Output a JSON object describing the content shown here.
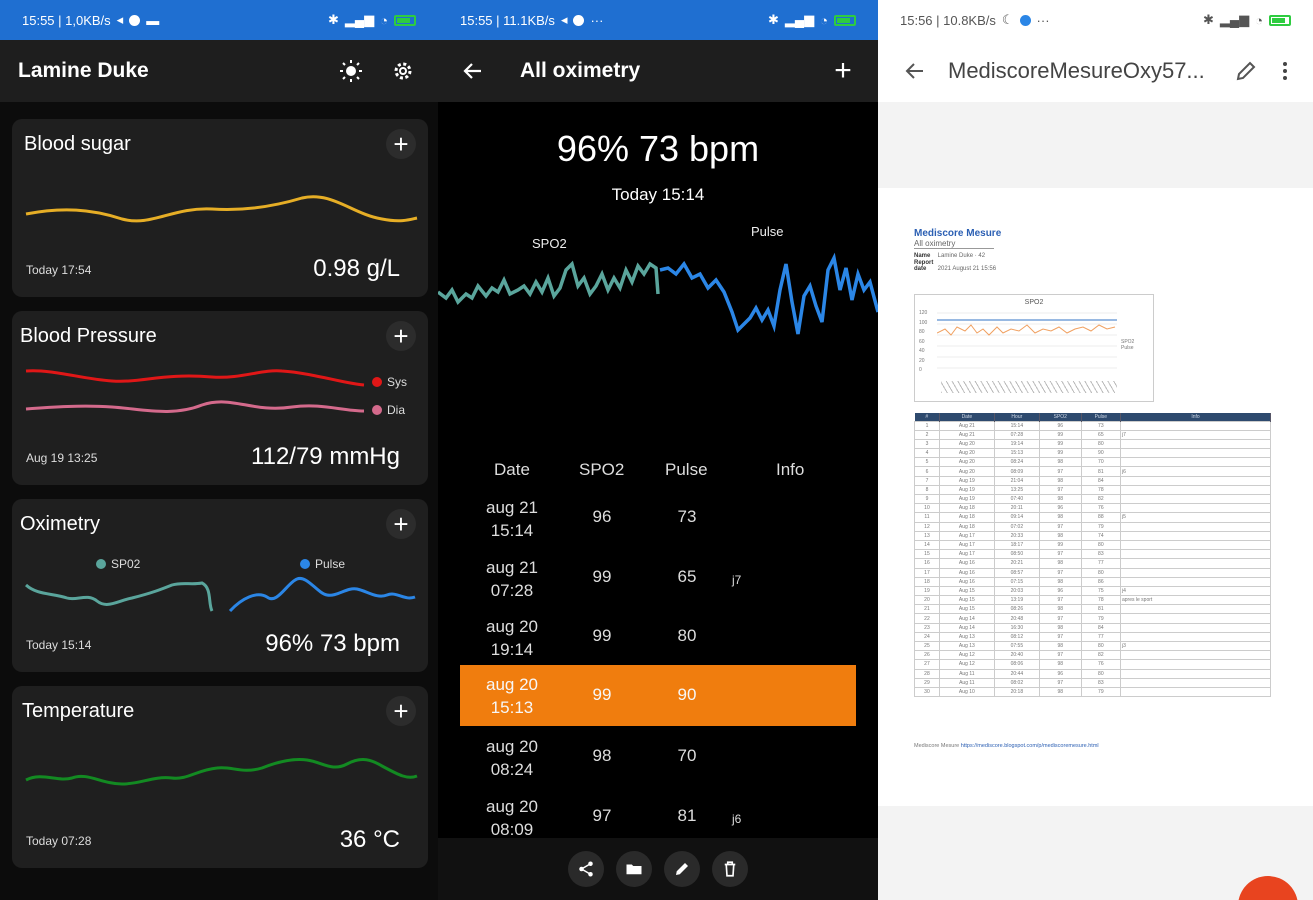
{
  "colors": {
    "accent_blue": "#1f6fd1",
    "selected_row": "#f07d0e",
    "blood_sugar": "#e6ae26",
    "systolic": "#e01717",
    "diastolic": "#d46a8c",
    "spo2": "#5aa59c",
    "pulse": "#2b86e6",
    "temperature": "#138a22",
    "fab": "#e8441f"
  },
  "panel1": {
    "status": {
      "time_info": "15:55 | 1,0KB/s"
    },
    "app_title": "Lamine Duke",
    "icons": {
      "brightness": "sun-icon",
      "settings": "gear-icon"
    },
    "cards": {
      "blood_sugar": {
        "title": "Blood sugar",
        "date": "Today 17:54",
        "value": "0.98 g/L"
      },
      "blood_pressure": {
        "title": "Blood Pressure",
        "date": "Aug 19 13:25",
        "value": "112/79 mmHg",
        "legend_sys": "Sys",
        "legend_dia": "Dia"
      },
      "oximetry": {
        "title": "Oximetry",
        "date": "Today 15:14",
        "value": "96% 73 bpm",
        "legend_spo2": "SP02",
        "legend_pulse": "Pulse"
      },
      "temperature": {
        "title": "Temperature",
        "date": "Today 07:28",
        "value": "36 °C"
      }
    }
  },
  "panel2": {
    "status": {
      "time_info": "15:55 | 11.1KB/s"
    },
    "title": "All oximetry",
    "summary": "96% 73 bpm",
    "summary_time": "Today 15:14",
    "chart_label_spo2": "SPO2",
    "chart_label_pulse": "Pulse",
    "table": {
      "headers": {
        "date": "Date",
        "spo2": "SPO2",
        "pulse": "Pulse",
        "info": "Info"
      },
      "rows": [
        {
          "date": "aug 21",
          "time": "15:14",
          "spo2": "96",
          "pulse": "73",
          "info": ""
        },
        {
          "date": "aug 21",
          "time": "07:28",
          "spo2": "99",
          "pulse": "65",
          "info": "j7"
        },
        {
          "date": "aug 20",
          "time": "19:14",
          "spo2": "99",
          "pulse": "80",
          "info": ""
        },
        {
          "date": "aug 20",
          "time": "15:13",
          "spo2": "99",
          "pulse": "90",
          "info": ""
        },
        {
          "date": "aug 20",
          "time": "08:24",
          "spo2": "98",
          "pulse": "70",
          "info": ""
        },
        {
          "date": "aug 20",
          "time": "08:09",
          "spo2": "97",
          "pulse": "81",
          "info": "j6"
        }
      ]
    },
    "toolbar_icons": [
      "share-icon",
      "folder-icon",
      "edit-icon",
      "delete-icon"
    ]
  },
  "panel3": {
    "status": {
      "time_info": "15:56 | 10.8KB/s"
    },
    "file_title": "MediscoreMesureOxy57...",
    "doc": {
      "title": "Mediscore Mesure",
      "subtitle": "All oximetry",
      "name_label": "Name",
      "name_value": "Lamine Duke · 42",
      "date_label": "Report date",
      "date_value": "2021 August 21 15:56",
      "chart_title": "SPO2",
      "chart_yticks": [
        "120",
        "100",
        "80",
        "60",
        "40",
        "20",
        "0"
      ],
      "legend_spo2": "SPO2",
      "legend_pulse": "Pulse",
      "table_headers": [
        "#",
        "Date",
        "Hour",
        "SPO2",
        "Pulse",
        "Info"
      ],
      "table_rows": [
        [
          "1",
          "Aug 21",
          "15:14",
          "96",
          "73",
          ""
        ],
        [
          "2",
          "Aug 21",
          "07:28",
          "99",
          "65",
          "j7"
        ],
        [
          "3",
          "Aug 20",
          "19:14",
          "99",
          "80",
          ""
        ],
        [
          "4",
          "Aug 20",
          "15:13",
          "99",
          "90",
          ""
        ],
        [
          "5",
          "Aug 20",
          "08:24",
          "98",
          "70",
          ""
        ],
        [
          "6",
          "Aug 20",
          "08:09",
          "97",
          "81",
          "j6"
        ],
        [
          "7",
          "Aug 19",
          "21:04",
          "98",
          "84",
          ""
        ],
        [
          "8",
          "Aug 19",
          "13:25",
          "97",
          "78",
          ""
        ],
        [
          "9",
          "Aug 19",
          "07:40",
          "98",
          "82",
          ""
        ],
        [
          "10",
          "Aug 18",
          "20:11",
          "96",
          "76",
          ""
        ],
        [
          "11",
          "Aug 18",
          "09:14",
          "98",
          "88",
          "j5"
        ],
        [
          "12",
          "Aug 18",
          "07:02",
          "97",
          "79",
          ""
        ],
        [
          "13",
          "Aug 17",
          "20:33",
          "98",
          "74",
          ""
        ],
        [
          "14",
          "Aug 17",
          "18:17",
          "99",
          "80",
          ""
        ],
        [
          "15",
          "Aug 17",
          "08:50",
          "97",
          "83",
          ""
        ],
        [
          "16",
          "Aug 16",
          "20:21",
          "98",
          "77",
          ""
        ],
        [
          "17",
          "Aug 16",
          "08:57",
          "97",
          "80",
          ""
        ],
        [
          "18",
          "Aug 16",
          "07:15",
          "98",
          "86",
          ""
        ],
        [
          "19",
          "Aug 15",
          "20:03",
          "96",
          "75",
          "j4"
        ],
        [
          "20",
          "Aug 15",
          "13:19",
          "97",
          "78",
          "apres le sport"
        ],
        [
          "21",
          "Aug 15",
          "08:26",
          "98",
          "81",
          ""
        ],
        [
          "22",
          "Aug 14",
          "20:48",
          "97",
          "79",
          ""
        ],
        [
          "23",
          "Aug 14",
          "16:30",
          "98",
          "84",
          ""
        ],
        [
          "24",
          "Aug 13",
          "08:12",
          "97",
          "77",
          ""
        ],
        [
          "25",
          "Aug 13",
          "07:55",
          "98",
          "80",
          "j3"
        ],
        [
          "26",
          "Aug 12",
          "20:40",
          "97",
          "82",
          ""
        ],
        [
          "27",
          "Aug 12",
          "08:06",
          "98",
          "76",
          ""
        ],
        [
          "28",
          "Aug 11",
          "20:44",
          "96",
          "80",
          ""
        ],
        [
          "29",
          "Aug 11",
          "08:02",
          "97",
          "83",
          ""
        ],
        [
          "30",
          "Aug 10",
          "20:18",
          "98",
          "79",
          ""
        ]
      ],
      "link_prefix": "Mediscore Mesure ",
      "link_url": "https://mediscore.blogspot.com/p/mediscoremesure.html"
    }
  }
}
